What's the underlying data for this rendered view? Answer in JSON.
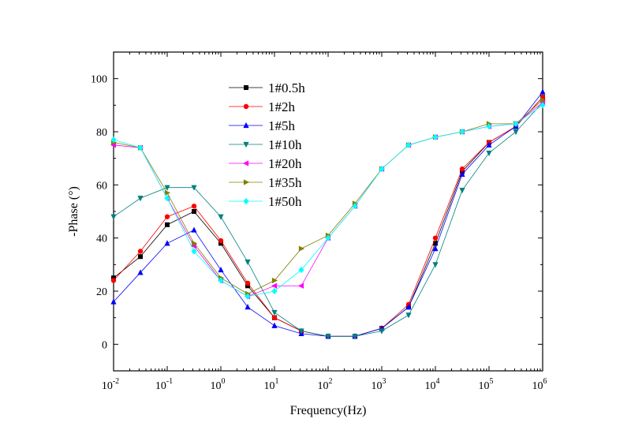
{
  "chart_data": {
    "type": "line",
    "title": "",
    "xlabel": "Frequency(Hz)",
    "ylabel": "-Phase (°)",
    "xscale": "log",
    "xlim_log10": [
      -2,
      6
    ],
    "ylim": [
      -10,
      110
    ],
    "x_tick_labels": [
      {
        "base": "10",
        "exp": "-2"
      },
      {
        "base": "10",
        "exp": "-1"
      },
      {
        "base": "10",
        "exp": "0"
      },
      {
        "base": "10",
        "exp": "1"
      },
      {
        "base": "10",
        "exp": "2"
      },
      {
        "base": "10",
        "exp": "3"
      },
      {
        "base": "10",
        "exp": "4"
      },
      {
        "base": "10",
        "exp": "5"
      },
      {
        "base": "10",
        "exp": "6"
      }
    ],
    "y_ticks": [
      0,
      20,
      40,
      60,
      80,
      100
    ],
    "y_tick_labels": [
      "0",
      "20",
      "40",
      "60",
      "80",
      "100"
    ],
    "legend_position": "upper-left-center",
    "x_log10": [
      -2,
      -1.5,
      -1,
      -0.5,
      0,
      0.5,
      1,
      1.5,
      2,
      2.5,
      3,
      3.5,
      4,
      4.5,
      5,
      5.5,
      6
    ],
    "series": [
      {
        "name": "1#0.5h",
        "color": "#000000",
        "marker": "square",
        "values": [
          25,
          33,
          45,
          50,
          38,
          22,
          10,
          5,
          3,
          3,
          6,
          14,
          38,
          65,
          76,
          82,
          93
        ]
      },
      {
        "name": "1#2h",
        "color": "#ff0000",
        "marker": "circle",
        "values": [
          24,
          35,
          48,
          52,
          39,
          23,
          10,
          5,
          3,
          3,
          6,
          15,
          40,
          66,
          76,
          82,
          93
        ]
      },
      {
        "name": "1#5h",
        "color": "#0000ff",
        "marker": "triangle-up",
        "values": [
          16,
          27,
          38,
          43,
          28,
          14,
          7,
          4,
          3,
          3,
          6,
          14,
          36,
          64,
          75,
          82,
          95
        ]
      },
      {
        "name": "1#10h",
        "color": "#008080",
        "marker": "triangle-down",
        "values": [
          48,
          55,
          59,
          59,
          48,
          31,
          12,
          5,
          3,
          3,
          5,
          11,
          30,
          58,
          72,
          80,
          91
        ]
      },
      {
        "name": "1#20h",
        "color": "#ff00ff",
        "marker": "triangle-left",
        "values": [
          75,
          74,
          55,
          37,
          24,
          18,
          22,
          22,
          40,
          52,
          66,
          75,
          78,
          80,
          82,
          83,
          91
        ]
      },
      {
        "name": "1#35h",
        "color": "#808000",
        "marker": "triangle-right",
        "values": [
          76,
          74,
          57,
          38,
          25,
          19,
          24,
          36,
          41,
          53,
          66,
          75,
          78,
          80,
          83,
          83,
          92
        ]
      },
      {
        "name": "1#50h",
        "color": "#00ffff",
        "marker": "diamond",
        "values": [
          77,
          74,
          55,
          35,
          24,
          18,
          20,
          28,
          40,
          52,
          66,
          75,
          78,
          80,
          82,
          83,
          90
        ]
      }
    ]
  }
}
